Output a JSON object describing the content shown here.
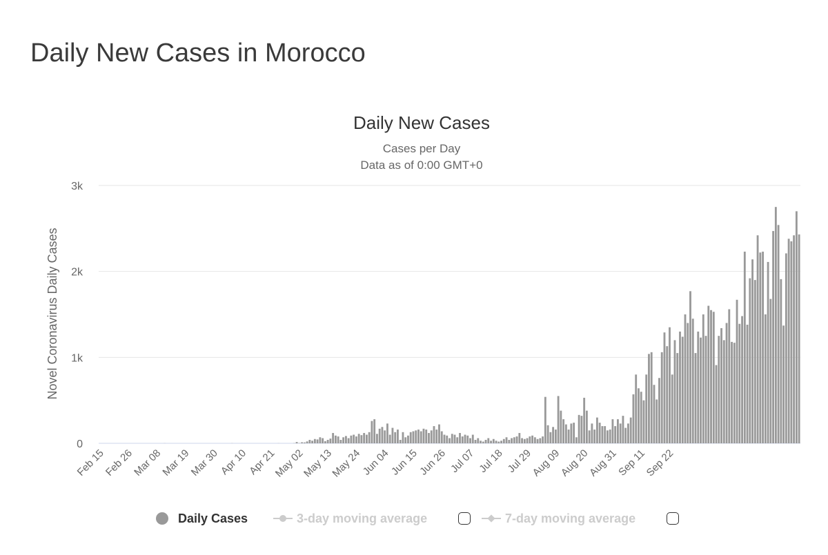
{
  "page": {
    "heading": "Daily New Cases in Morocco"
  },
  "chart_data": {
    "type": "bar",
    "title": "Daily New Cases",
    "subtitle_lines": [
      "Cases per Day",
      "Data as of 0:00 GMT+0"
    ],
    "ylabel": "Novel Coronavirus Daily Cases",
    "xlabel": "",
    "ylim": [
      0,
      3000
    ],
    "y_ticks": [
      {
        "value": 0,
        "label": "0"
      },
      {
        "value": 1000,
        "label": "1k"
      },
      {
        "value": 2000,
        "label": "2k"
      },
      {
        "value": 3000,
        "label": "3k"
      }
    ],
    "x_start": "Feb 15",
    "x_tick_labels": [
      "Feb 15",
      "Feb 26",
      "Mar 08",
      "Mar 19",
      "Mar 30",
      "Apr 10",
      "Apr 21",
      "May 02",
      "May 13",
      "May 24",
      "Jun 04",
      "Jun 15",
      "Jun 26",
      "Jul 07",
      "Jul 18",
      "Jul 29",
      "Aug 09",
      "Aug 20",
      "Aug 31",
      "Sep 11",
      "Sep 22"
    ],
    "tick_interval_days": 11,
    "grid": true,
    "bar_color": "#999999",
    "series": [
      {
        "name": "Daily Cases",
        "values": [
          0,
          0,
          0,
          0,
          0,
          0,
          0,
          0,
          0,
          0,
          0,
          0,
          0,
          0,
          0,
          0,
          0,
          0,
          0,
          0,
          0,
          0,
          0,
          0,
          0,
          1,
          0,
          0,
          0,
          0,
          0,
          0,
          0,
          0,
          0,
          0,
          0,
          0,
          0,
          0,
          0,
          0,
          0,
          0,
          0,
          0,
          0,
          0,
          0,
          0,
          0,
          1,
          0,
          0,
          0,
          0,
          0,
          0,
          0,
          0,
          0,
          0,
          0,
          0,
          0,
          0,
          0,
          0,
          0,
          1,
          0,
          0,
          0,
          0,
          0,
          2,
          15,
          3,
          12,
          10,
          22,
          40,
          30,
          50,
          45,
          70,
          60,
          25,
          40,
          55,
          120,
          90,
          80,
          40,
          70,
          85,
          60,
          90,
          100,
          80,
          110,
          95,
          120,
          100,
          130,
          260,
          280,
          110,
          170,
          190,
          150,
          230,
          100,
          180,
          130,
          160,
          40,
          130,
          70,
          90,
          130,
          140,
          150,
          160,
          140,
          170,
          160,
          120,
          150,
          200,
          160,
          220,
          140,
          100,
          90,
          60,
          110,
          100,
          70,
          120,
          80,
          100,
          90,
          60,
          100,
          40,
          60,
          30,
          20,
          40,
          60,
          30,
          50,
          30,
          20,
          30,
          50,
          70,
          40,
          60,
          70,
          80,
          120,
          60,
          50,
          60,
          80,
          90,
          70,
          50,
          60,
          80,
          540,
          210,
          130,
          190,
          160,
          550,
          380,
          280,
          220,
          160,
          230,
          240,
          70,
          330,
          320,
          530,
          380,
          150,
          230,
          160,
          300,
          240,
          200,
          200,
          150,
          160,
          280,
          200,
          280,
          230,
          320,
          180,
          230,
          300,
          570,
          800,
          640,
          600,
          500,
          800,
          1040,
          1060,
          680,
          510,
          760,
          1060,
          1290,
          1130,
          1350,
          800,
          1200,
          1050,
          1300,
          1240,
          1500,
          1400,
          1770,
          1450,
          1050,
          1300,
          1230,
          1500,
          1250,
          1600,
          1550,
          1530,
          910,
          1250,
          1340,
          1200,
          1400,
          1560,
          1180,
          1170,
          1670,
          1390,
          1480,
          2230,
          1380,
          1920,
          2140,
          1900,
          2420,
          2220,
          2230,
          1500,
          2110,
          1680,
          2470,
          2750,
          2540,
          1910,
          1370,
          2210,
          2380,
          2350,
          2420,
          2700,
          2430
        ]
      }
    ],
    "legend": [
      {
        "label": "Daily Cases",
        "active": true,
        "color": "#999999"
      },
      {
        "label": "3-day moving average",
        "active": false,
        "color": "#cccccc"
      },
      {
        "label": "7-day moving average",
        "active": false,
        "color": "#cccccc"
      }
    ]
  }
}
